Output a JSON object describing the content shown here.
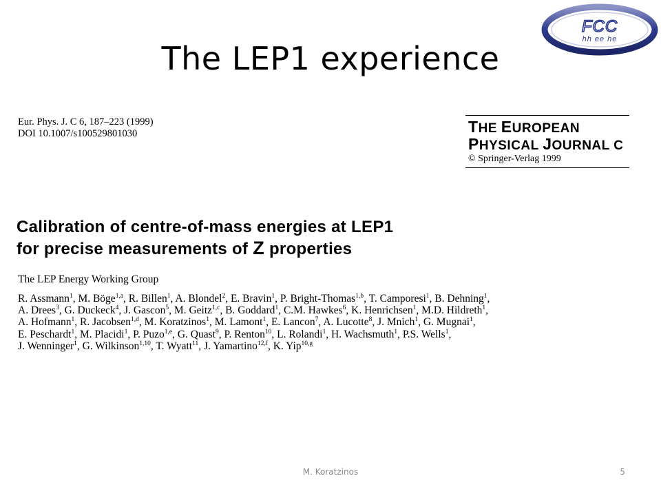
{
  "slide": {
    "title": "The LEP1 experience",
    "logo": {
      "line1": "FCC",
      "line2": "hh ee he",
      "colors": {
        "ring": "#2d3a8c",
        "text": "#2d3a8c"
      }
    },
    "footer": {
      "author": "M. Koratzinos",
      "page_number": "5"
    }
  },
  "paper": {
    "citation_line1": "Eur. Phys. J. C 6, 187–223 (1999)",
    "citation_line2": "DOI 10.1007/s100529801030",
    "journal": {
      "t_big": "T",
      "t_rest": "HE ",
      "e_big": "E",
      "e_rest": "UROPEAN",
      "p_big": "P",
      "p_rest": "HYSICAL ",
      "j_big": "J",
      "j_rest": "OURNAL C",
      "publisher": "© Springer-Verlag 1999"
    },
    "title_line1": "Calibration of centre-of-mass energies at LEP1",
    "title_line2_pre": "for precise measurements of ",
    "title_line2_z": "Z",
    "title_line2_post": " properties",
    "group": "The LEP Energy Working Group",
    "authors": [
      [
        {
          "n": "R. Assmann",
          "s": "1"
        },
        {
          "n": ", M. Böge",
          "s": "1,a"
        },
        {
          "n": ", R. Billen",
          "s": "1"
        },
        {
          "n": ", A. Blondel",
          "s": "2"
        },
        {
          "n": ", E. Bravin",
          "s": "1"
        },
        {
          "n": ", P. Bright-Thomas",
          "s": "1,b"
        },
        {
          "n": ", T. Camporesi",
          "s": "1"
        },
        {
          "n": ", B. Dehning",
          "s": "1"
        },
        {
          "n": ",",
          "s": ""
        }
      ],
      [
        {
          "n": "A. Drees",
          "s": "3"
        },
        {
          "n": ", G. Duckeck",
          "s": "4"
        },
        {
          "n": ", J. Gascon",
          "s": "5"
        },
        {
          "n": ", M. Geitz",
          "s": "1,c"
        },
        {
          "n": ", B. Goddard",
          "s": "1"
        },
        {
          "n": ", C.M. Hawkes",
          "s": "6"
        },
        {
          "n": ", K. Henrichsen",
          "s": "1"
        },
        {
          "n": ", M.D. Hildreth",
          "s": "1"
        },
        {
          "n": ",",
          "s": ""
        }
      ],
      [
        {
          "n": "A. Hofmann",
          "s": "1"
        },
        {
          "n": ", R. Jacobsen",
          "s": "1,d"
        },
        {
          "n": ", M. Koratzinos",
          "s": "1"
        },
        {
          "n": ", M. Lamont",
          "s": "1"
        },
        {
          "n": ", E. Lancon",
          "s": "7"
        },
        {
          "n": ", A. Lucotte",
          "s": "8"
        },
        {
          "n": ", J. Mnich",
          "s": "1"
        },
        {
          "n": ", G. Mugnai",
          "s": "1"
        },
        {
          "n": ",",
          "s": ""
        }
      ],
      [
        {
          "n": "E. Peschardt",
          "s": "1"
        },
        {
          "n": ", M. Placidi",
          "s": "1"
        },
        {
          "n": ", P. Puzo",
          "s": "1,e"
        },
        {
          "n": ", G. Quast",
          "s": "9"
        },
        {
          "n": ", P. Renton",
          "s": "10"
        },
        {
          "n": ", L. Rolandi",
          "s": "1"
        },
        {
          "n": ", H. Wachsmuth",
          "s": "1"
        },
        {
          "n": ", P.S. Wells",
          "s": "1"
        },
        {
          "n": ",",
          "s": ""
        }
      ],
      [
        {
          "n": "J. Wenninger",
          "s": "1"
        },
        {
          "n": ", G. Wilkinson",
          "s": "1,10"
        },
        {
          "n": ", T. Wyatt",
          "s": "11"
        },
        {
          "n": ", J. Yamartino",
          "s": "12,f"
        },
        {
          "n": ", K. Yip",
          "s": "10,g"
        }
      ]
    ]
  }
}
